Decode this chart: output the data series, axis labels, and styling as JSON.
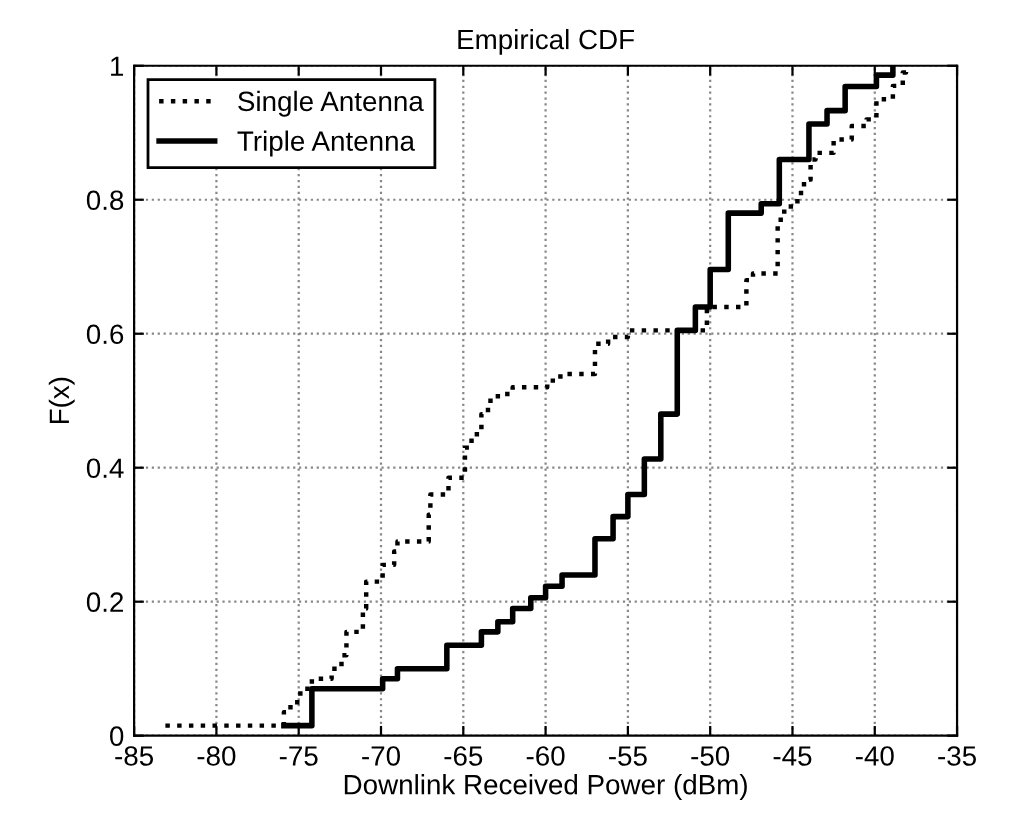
{
  "chart_data": {
    "type": "step",
    "title": "Empirical CDF",
    "xlabel": "Downlink Received Power (dBm)",
    "ylabel": "F(x)",
    "xlim": [
      -85,
      -35
    ],
    "xticks": [
      -85,
      -80,
      -75,
      -70,
      -65,
      -60,
      -55,
      -50,
      -45,
      -40,
      -35
    ],
    "ylim": [
      0,
      1
    ],
    "yticks": [
      0,
      0.2,
      0.4,
      0.6,
      0.8,
      1
    ],
    "grid": true,
    "legend": "top left",
    "series": [
      {
        "name": "Single Antenna",
        "color": "#000000",
        "line_style": "dotted",
        "x": [
          -83.1,
          -75.9,
          -75.5,
          -74.9,
          -74.2,
          -73.0,
          -72.4,
          -72.1,
          -71.1,
          -70.9,
          -69.9,
          -69.2,
          -69.0,
          -67.1,
          -67.0,
          -65.9,
          -64.9,
          -64.5,
          -63.9,
          -63.5,
          -62.9,
          -62.0,
          -59.9,
          -59.1,
          -57.0,
          -56.2,
          -55.0,
          -50.2,
          -47.8,
          -47.4,
          -45.9,
          -45.5,
          -44.7,
          -44.3,
          -43.9,
          -43.6,
          -42.5,
          -41.4,
          -40.5,
          -39.9,
          -38.9,
          -38.3,
          -38.1
        ],
        "values": [
          0.015,
          0.035,
          0.05,
          0.07,
          0.085,
          0.1,
          0.12,
          0.155,
          0.19,
          0.23,
          0.255,
          0.275,
          0.29,
          0.33,
          0.36,
          0.385,
          0.43,
          0.45,
          0.48,
          0.5,
          0.51,
          0.52,
          0.53,
          0.54,
          0.585,
          0.595,
          0.605,
          0.64,
          0.68,
          0.69,
          0.77,
          0.79,
          0.81,
          0.83,
          0.86,
          0.87,
          0.89,
          0.91,
          0.92,
          0.95,
          0.97,
          0.99,
          1.0
        ]
      },
      {
        "name": "Triple Antenna",
        "color": "#000000",
        "line_style": "solid",
        "x": [
          -75.9,
          -74.2,
          -69.9,
          -69.0,
          -66.0,
          -63.9,
          -62.9,
          -62.0,
          -60.9,
          -60.0,
          -59.0,
          -57.0,
          -55.9,
          -55.0,
          -54.0,
          -53.0,
          -52.0,
          -50.9,
          -50.0,
          -48.9,
          -46.9,
          -45.8,
          -44.0,
          -42.9,
          -41.8,
          -39.9,
          -38.9
        ],
        "values": [
          0.015,
          0.07,
          0.085,
          0.1,
          0.135,
          0.155,
          0.17,
          0.19,
          0.206,
          0.223,
          0.24,
          0.294,
          0.327,
          0.36,
          0.413,
          0.48,
          0.605,
          0.64,
          0.696,
          0.78,
          0.794,
          0.86,
          0.913,
          0.933,
          0.969,
          0.986,
          1.0
        ]
      }
    ]
  }
}
